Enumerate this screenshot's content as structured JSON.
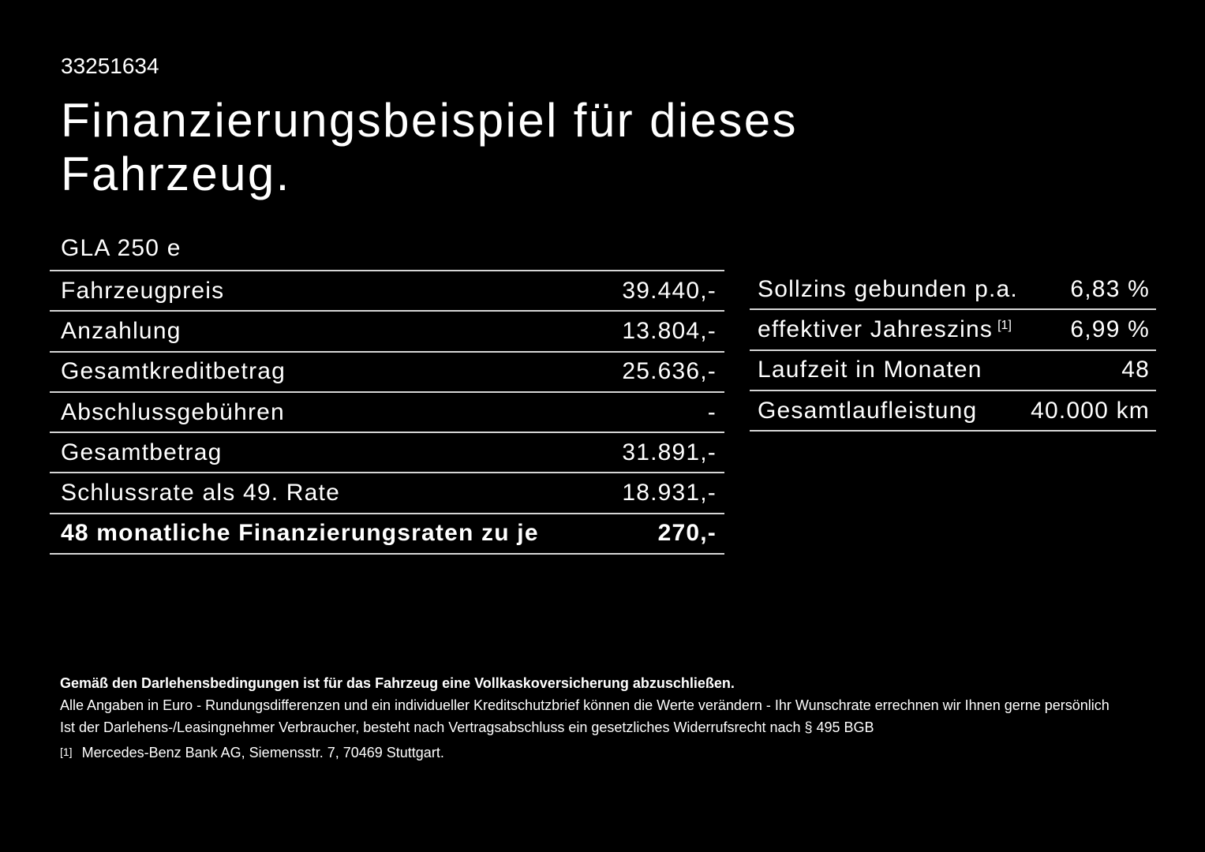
{
  "page": {
    "background_color": "#000000",
    "text_color": "#ffffff",
    "divider_color": "#d6d6d6"
  },
  "header": {
    "listing_id": "33251634",
    "title": "Finanzierungsbeispiel für dieses Fahrzeug.",
    "model": "GLA 250 e"
  },
  "finance_table": {
    "rows": [
      {
        "label": "Fahrzeugpreis",
        "value": "39.440,-"
      },
      {
        "label": "Anzahlung",
        "value": "13.804,-"
      },
      {
        "label": "Gesamtkreditbetrag",
        "value": "25.636,-"
      },
      {
        "label": "Abschlussgebühren",
        "value": "-"
      },
      {
        "label": "Gesamtbetrag",
        "value": "31.891,-"
      },
      {
        "label": "Schlussrate als 49. Rate",
        "value": "18.931,-"
      },
      {
        "label": "48 monatliche Finanzierungsraten zu je",
        "value": "270,-"
      }
    ]
  },
  "conditions_table": {
    "rows": [
      {
        "label": "Sollzins gebunden p.a.",
        "sup": "",
        "value": "6,83 %"
      },
      {
        "label": "effektiver Jahreszins",
        "sup": "[1]",
        "value": "6,99 %"
      },
      {
        "label": "Laufzeit in Monaten",
        "sup": "",
        "value": "48"
      },
      {
        "label": "Gesamtlaufleistung",
        "sup": "",
        "value": "40.000 km"
      }
    ]
  },
  "footnotes": {
    "insurance_note": "Gemäß den Darlehensbedingungen ist für das Fahrzeug eine Vollkaskoversicherung abzuschließen.",
    "disclaimer_line1": "Alle Angaben in Euro - Rundungsdifferenzen und ein individueller Kreditschutzbrief können die Werte verändern - Ihr Wunschrate errechnen wir Ihnen gerne persönlich",
    "disclaimer_line2": "Ist der Darlehens-/Leasingnehmer Verbraucher, besteht nach Vertragsabschluss ein gesetzliches Widerrufsrecht nach § 495 BGB",
    "source_marker": "[1]",
    "source_text": "Mercedes-Benz Bank AG, Siemensstr. 7, 70469 Stuttgart."
  }
}
